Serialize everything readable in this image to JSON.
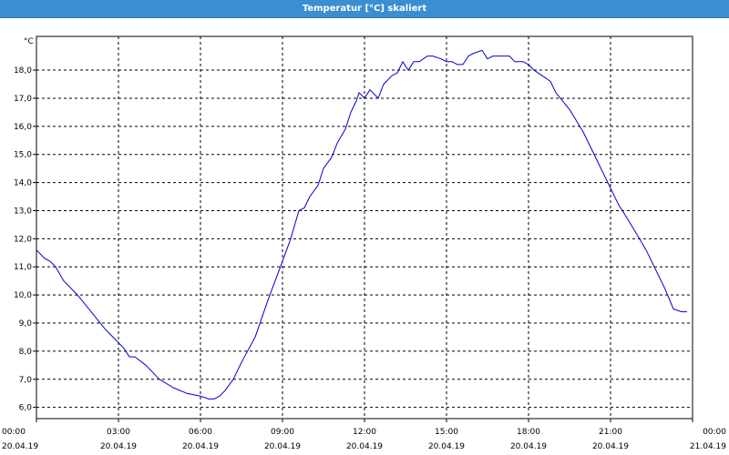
{
  "window": {
    "title": "Temperatur [°C] skaliert"
  },
  "colors": {
    "title_bar": "#3b8fd0",
    "series": "#0000cc",
    "grid": "#000000",
    "background": "#ffffff"
  },
  "chart_data": {
    "type": "line",
    "title": "Temperatur [°C] skaliert",
    "ylabel": "°C",
    "xlabel": "",
    "grid": true,
    "ylim": [
      5.6,
      19.2
    ],
    "y_ticks": [
      "6,0",
      "7,0",
      "8,0",
      "9,0",
      "10,0",
      "11,0",
      "12,0",
      "13,0",
      "14,0",
      "15,0",
      "16,0",
      "17,0",
      "18,0"
    ],
    "y_tick_values": [
      6,
      7,
      8,
      9,
      10,
      11,
      12,
      13,
      14,
      15,
      16,
      17,
      18
    ],
    "x_range_hours": [
      0,
      24
    ],
    "x_ticks": [
      {
        "time": "00:00",
        "date": "20.04.19"
      },
      {
        "time": "03:00",
        "date": "20.04.19"
      },
      {
        "time": "06:00",
        "date": "20.04.19"
      },
      {
        "time": "09:00",
        "date": "20.04.19"
      },
      {
        "time": "12:00",
        "date": "20.04.19"
      },
      {
        "time": "15:00",
        "date": "20.04.19"
      },
      {
        "time": "18:00",
        "date": "20.04.19"
      },
      {
        "time": "21:00",
        "date": "20.04.19"
      },
      {
        "time": "00:00",
        "date": "21.04.19"
      }
    ],
    "series": [
      {
        "x": [
          0,
          0.3,
          0.5,
          0.7,
          1.0,
          1.5,
          2.0,
          2.5,
          2.7,
          3.0,
          3.2,
          3.4,
          3.6,
          4.0,
          4.5,
          5.0,
          5.5,
          6.0,
          6.3,
          6.5,
          6.7,
          6.9,
          7.2,
          7.5,
          8.0,
          8.5,
          9.0,
          9.3,
          9.6,
          9.8,
          10.0,
          10.3,
          10.5,
          10.8,
          11.0,
          11.3,
          11.5,
          11.7,
          11.8,
          12.0,
          12.2,
          12.5,
          12.7,
          13.0,
          13.2,
          13.4,
          13.6,
          13.8,
          14.0,
          14.3,
          14.5,
          14.8,
          15.0,
          15.2,
          15.4,
          15.6,
          15.8,
          16.0,
          16.3,
          16.5,
          16.7,
          17.0,
          17.3,
          17.5,
          17.8,
          18.0,
          18.2,
          18.5,
          18.8,
          19.0,
          19.5,
          20.0,
          20.5,
          21.0,
          21.3,
          21.5,
          22.0,
          22.3,
          22.6,
          23.0,
          23.3,
          23.6,
          23.8
        ],
        "y": [
          11.6,
          11.3,
          11.2,
          11.0,
          10.5,
          10.0,
          9.4,
          8.8,
          8.6,
          8.3,
          8.1,
          7.8,
          7.8,
          7.5,
          7.0,
          6.7,
          6.5,
          6.4,
          6.3,
          6.3,
          6.4,
          6.6,
          7.0,
          7.6,
          8.5,
          9.9,
          11.2,
          12.0,
          13.0,
          13.1,
          13.5,
          13.9,
          14.5,
          14.9,
          15.4,
          15.9,
          16.5,
          16.9,
          17.2,
          17.0,
          17.3,
          17.0,
          17.5,
          17.8,
          17.9,
          18.3,
          18.0,
          18.3,
          18.3,
          18.5,
          18.5,
          18.4,
          18.3,
          18.3,
          18.2,
          18.2,
          18.5,
          18.6,
          18.7,
          18.4,
          18.5,
          18.5,
          18.5,
          18.3,
          18.3,
          18.2,
          18.0,
          17.8,
          17.6,
          17.2,
          16.6,
          15.8,
          14.8,
          13.8,
          13.2,
          12.9,
          12.1,
          11.6,
          11.0,
          10.2,
          9.5,
          9.4,
          9.4
        ]
      }
    ]
  }
}
